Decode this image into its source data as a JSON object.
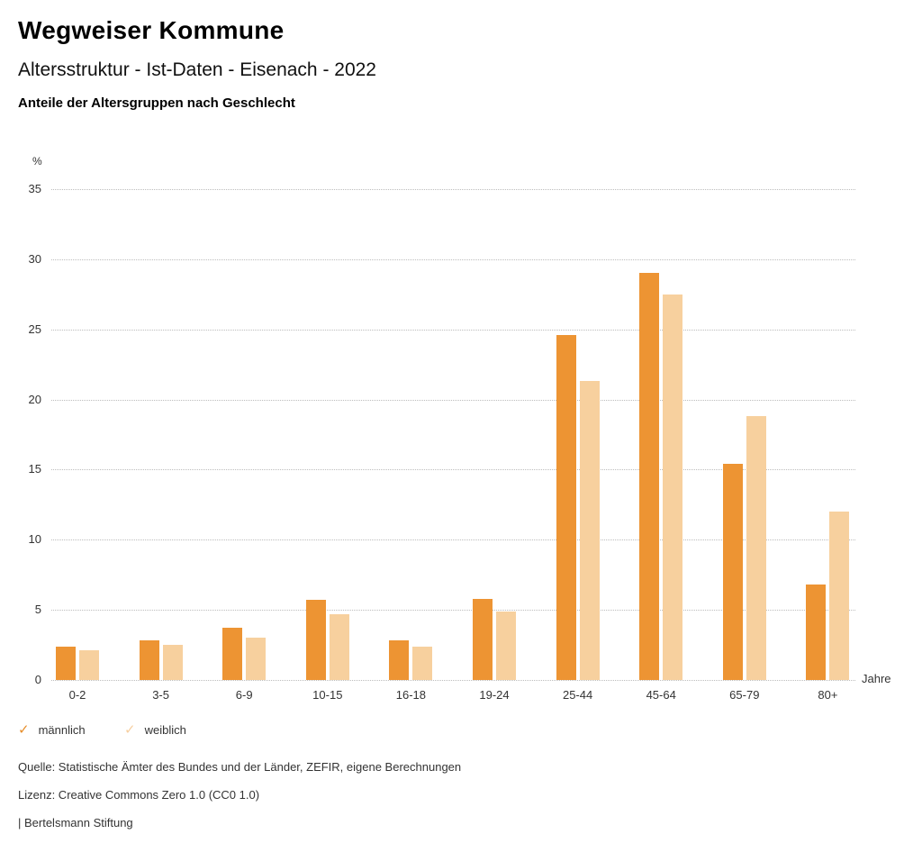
{
  "header": {
    "title": "Wegweiser Kommune",
    "subtitle": "Altersstruktur - Ist-Daten - Eisenach - 2022",
    "measure": "Anteile der Altersgruppen nach Geschlecht"
  },
  "chart_data": {
    "type": "bar",
    "title": "Anteile der Altersgruppen nach Geschlecht",
    "categories": [
      "0-2",
      "3-5",
      "6-9",
      "10-15",
      "16-18",
      "19-24",
      "25-44",
      "45-64",
      "65-79",
      "80+"
    ],
    "series": [
      {
        "name": "männlich",
        "color": "#ED9433",
        "values": [
          2.4,
          2.8,
          3.7,
          5.7,
          2.8,
          5.8,
          24.6,
          29.0,
          15.4,
          6.8
        ]
      },
      {
        "name": "weiblich",
        "color": "#F7D09E",
        "values": [
          2.1,
          2.5,
          3.0,
          4.7,
          2.4,
          4.9,
          21.3,
          27.5,
          18.8,
          12.0
        ]
      }
    ],
    "ylabel": "%",
    "xlabel": "Jahre",
    "ylim": [
      0,
      35
    ],
    "ytick_step": 5,
    "grid": "horizontal-dotted",
    "legend_position": "bottom-left"
  },
  "legend": {
    "check_glyph": "✓",
    "items": [
      {
        "label": "männlich",
        "check_color": "#E78E2B"
      },
      {
        "label": "weiblich",
        "check_color": "#F7CFA0"
      }
    ]
  },
  "footer": {
    "source": "Quelle: Statistische Ämter des Bundes und der Länder, ZEFIR, eigene Berechnungen",
    "license": "Lizenz: Creative Commons Zero 1.0 (CC0 1.0)",
    "brand": "| Bertelsmann Stiftung"
  }
}
